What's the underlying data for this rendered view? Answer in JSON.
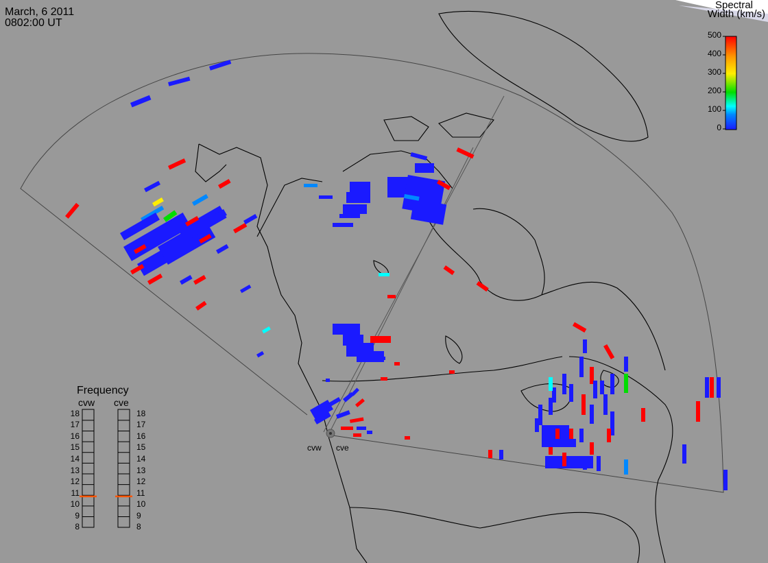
{
  "header": {
    "date": "March, 6 2011",
    "time": "0802:00 UT"
  },
  "colorbar": {
    "title_line1": "Spectral",
    "title_line2": "Width (km/s)",
    "ticks": [
      "500",
      "400",
      "300",
      "200",
      "100",
      "0"
    ],
    "range": [
      0,
      500
    ],
    "colors": [
      "#ff0000",
      "#ff9900",
      "#ffee00",
      "#00dd00",
      "#00ffff",
      "#0088ff",
      "#1a1aff"
    ]
  },
  "frequency": {
    "title": "Frequency",
    "stations": [
      "cvw",
      "cve"
    ],
    "ticks": [
      "18",
      "17",
      "16",
      "15",
      "14",
      "13",
      "12",
      "11",
      "10",
      "9",
      "8"
    ],
    "values_mhz": [
      10.9,
      10.9
    ],
    "marker_color": "#ff5500"
  },
  "sites": {
    "labels": [
      "cvw",
      "cve"
    ]
  },
  "palette": {
    "background": "#999999",
    "coastline": "#000000",
    "fov_outline": "#444444",
    "scatter_high": "#ff0000",
    "scatter_low": "#1a1aff"
  }
}
